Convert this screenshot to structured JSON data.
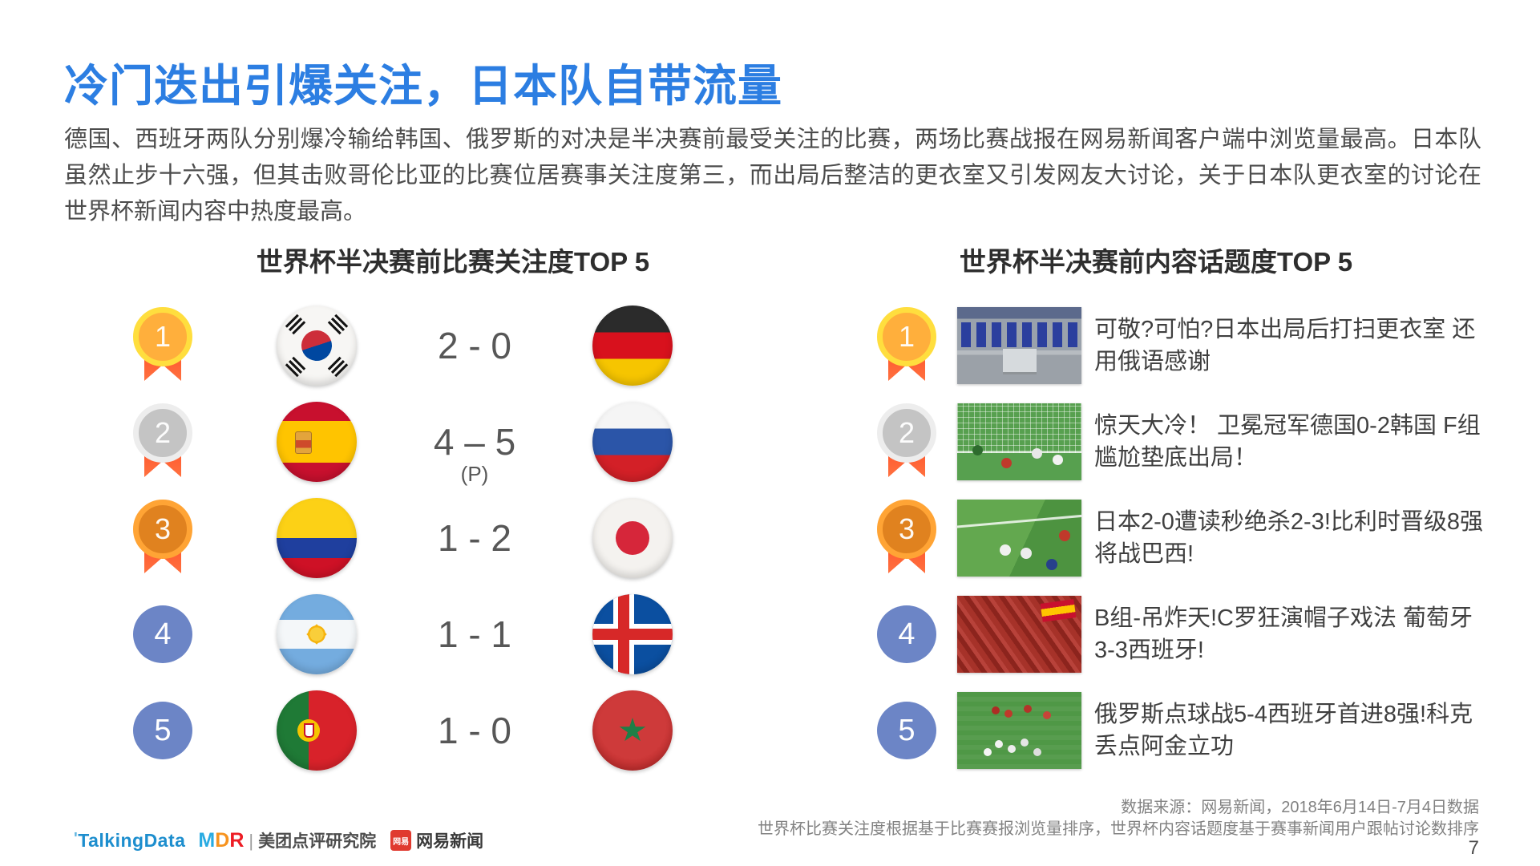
{
  "page": {
    "title": "冷门迭出引爆关注，日本队自带流量",
    "body": "德国、西班牙两队分别爆冷输给韩国、俄罗斯的对决是半决赛前最受关注的比赛，两场比赛战报在网易新闻客户端中浏览量最高。日本队虽然止步十六强，但其击败哥伦比亚的比赛位居赛事关注度第三，而出局后整洁的更衣室又引发网友大讨论，关于日本队更衣室的讨论在世界杯新闻内容中热度最高。",
    "page_number": "7"
  },
  "left_ranking": {
    "title": "世界杯半决赛前比赛关注度TOP 5",
    "rows": [
      {
        "rank": "1",
        "medal": "gold",
        "team_left": "south-korea",
        "score": "2 - 0",
        "score_note": "",
        "team_right": "germany"
      },
      {
        "rank": "2",
        "medal": "silver",
        "team_left": "spain",
        "score": "4 – 5",
        "score_note": "(P)",
        "team_right": "russia"
      },
      {
        "rank": "3",
        "medal": "bronze",
        "team_left": "colombia",
        "score": "1 - 2",
        "score_note": "",
        "team_right": "japan"
      },
      {
        "rank": "4",
        "medal": "plain",
        "team_left": "argentina",
        "score": "1 - 1",
        "score_note": "",
        "team_right": "iceland"
      },
      {
        "rank": "5",
        "medal": "plain",
        "team_left": "portugal",
        "score": "1 - 0",
        "score_note": "",
        "team_right": "morocco"
      }
    ]
  },
  "right_ranking": {
    "title": "世界杯半决赛前内容话题度TOP 5",
    "rows": [
      {
        "rank": "1",
        "medal": "gold",
        "image": "japan-locker-room-photo",
        "headline": "可敬?可怕?日本出局后打扫更衣室 还用俄语感谢"
      },
      {
        "rank": "2",
        "medal": "silver",
        "image": "germany-korea-goal-photo",
        "headline": "惊天大冷！ 卫冕冠军德国0-2韩国 F组尴尬垫底出局！"
      },
      {
        "rank": "3",
        "medal": "bronze",
        "image": "japan-belgium-pitch-photo",
        "headline": "日本2-0遭读秒绝杀2-3!比利时晋级8强将战巴西!"
      },
      {
        "rank": "4",
        "medal": "plain",
        "image": "portugal-spain-fans-photo",
        "headline": "B组-吊炸天!C罗狂演帽子戏法 葡萄牙3-3西班牙!"
      },
      {
        "rank": "5",
        "medal": "plain",
        "image": "russia-celebration-photo",
        "headline": "俄罗斯点球战5-4西班牙首进8强!科克丢点阿金立功"
      }
    ]
  },
  "footer": {
    "source_line1": "数据来源：网易新闻，2018年6月14日-7月4日数据",
    "source_line2": "世界杯比赛关注度根据基于比赛赛报浏览量排序，世界杯内容话题度基于赛事新闻用户跟帖讨论数排序",
    "logos": {
      "talkingdata": "TalkingData",
      "mdr_m": "M",
      "mdr_d": "D",
      "mdr_r": "R",
      "separator": "|",
      "meituan_institute": "美团点评研究院",
      "netease_badge": "网易",
      "netease_news": "网易新闻"
    }
  },
  "colors": {
    "title_blue": "#2C7EE2",
    "rank_circle_blue": "#6C85C6",
    "medal_ribbon_orange": "#FF5B2E",
    "medal_gold": "#FFDE3E",
    "medal_silver": "#EDEDED",
    "medal_bronze": "#FFA435"
  }
}
